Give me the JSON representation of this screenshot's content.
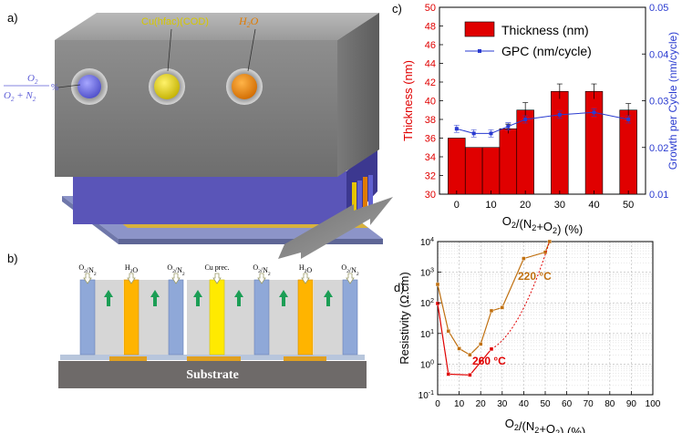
{
  "panel_a": {
    "label": "a)",
    "precursors": [
      {
        "name": "Cu(hfac)(COD)",
        "color": "#d6c700"
      },
      {
        "name": "H2O",
        "color": "#e07b00"
      }
    ],
    "ratio_label": {
      "numerator": "O2",
      "denominator": "O2 + N2",
      "unit": "%",
      "color": "#5b5bd6"
    }
  },
  "panel_b": {
    "label": "b)",
    "channels": [
      "O2/N2",
      "H2O",
      "O2/N2",
      "Cu prec.",
      "O2/N2",
      "H2O",
      "O2/N2"
    ],
    "substrate": "Substrate"
  },
  "chart_data": [
    {
      "panel": "c)",
      "type": "bar",
      "xlabel": "O2/(N2+O2) (%)",
      "ylabel": "Thickness (nm)",
      "y2label": "Growth per Cycle (nm/cycle)",
      "xlim": [
        -5,
        55
      ],
      "ylim": [
        30,
        50
      ],
      "y2lim": [
        0.01,
        0.05
      ],
      "xticks": [
        "0",
        "10",
        "20",
        "30",
        "40",
        "50"
      ],
      "yticks": [
        "30",
        "32",
        "34",
        "36",
        "38",
        "40",
        "42",
        "44",
        "46",
        "48",
        "50"
      ],
      "y2ticks": [
        "0.01",
        "0.02",
        "0.03",
        "0.04",
        "0.05"
      ],
      "legend": [
        "Thickness (nm)",
        "GPC (nm/cycle)"
      ],
      "colors": {
        "thickness": "#e00000",
        "gpc": "#2a3bd0",
        "axis_left": "#e00000",
        "axis_right": "#2a3bd0"
      },
      "series": [
        {
          "name": "Thickness (nm)",
          "x": [
            0,
            5,
            10,
            15,
            20,
            30,
            40,
            50
          ],
          "values": [
            36,
            35,
            35,
            37,
            39,
            41,
            41,
            39
          ],
          "errors": [
            0,
            0,
            0,
            0.5,
            0.8,
            0.8,
            0.8,
            0.7
          ]
        },
        {
          "name": "GPC (nm/cycle)",
          "x": [
            0,
            5,
            10,
            15,
            20,
            30,
            40,
            50
          ],
          "values": [
            0.024,
            0.023,
            0.023,
            0.0245,
            0.026,
            0.027,
            0.0275,
            0.026
          ]
        }
      ]
    },
    {
      "panel": "d)",
      "type": "line",
      "xlabel": "O2/(N2+O2) (%)",
      "ylabel": "Resistivity (Ω.cm)",
      "yscale": "log",
      "xlim": [
        0,
        100
      ],
      "ylim": [
        0.1,
        10000
      ],
      "xticks": [
        "0",
        "10",
        "20",
        "30",
        "40",
        "50",
        "60",
        "70",
        "80",
        "90",
        "100"
      ],
      "yticks": [
        "10-1",
        "100",
        "101",
        "102",
        "103",
        "104"
      ],
      "series": [
        {
          "name": "220 °C",
          "color": "#c07010",
          "x": [
            0,
            5,
            10,
            15,
            20,
            25,
            30,
            40,
            50,
            52
          ],
          "values": [
            400,
            12,
            3.2,
            2.0,
            4.5,
            55,
            70,
            2800,
            4500,
            10000
          ]
        },
        {
          "name": "260 °C",
          "color": "#e00000",
          "x": [
            0,
            5,
            15,
            25
          ],
          "values": [
            95,
            0.47,
            0.44,
            3.1
          ],
          "extrapolation": {
            "x": [
              25,
              52
            ],
            "values": [
              3.1,
              10000
            ]
          }
        }
      ]
    }
  ]
}
